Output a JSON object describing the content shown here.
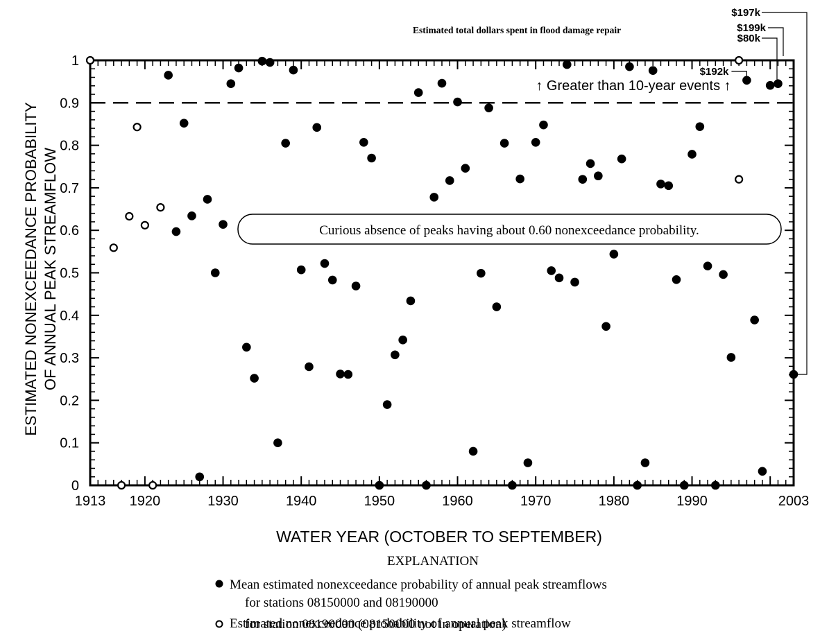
{
  "chart_data": {
    "type": "scatter",
    "xlabel": "WATER YEAR (OCTOBER TO SEPTEMBER)",
    "ylabel_line1": "ESTIMATED NONEXCEEDANCE PROBABILITY",
    "ylabel_line2": "OF ANNUAL PEAK STREAMFLOW",
    "xlim": [
      1913,
      2003
    ],
    "ylim": [
      0,
      1
    ],
    "x_ticks": [
      1913,
      1920,
      1930,
      1940,
      1950,
      1960,
      1970,
      1980,
      1990,
      2003
    ],
    "y_ticks": [
      0,
      0.1,
      0.2,
      0.3,
      0.4,
      0.5,
      0.6,
      0.7,
      0.8,
      0.9,
      1
    ],
    "y_tick_labels": [
      "0",
      "0.1",
      "0.2",
      "0.3",
      "0.4",
      "0.5",
      "0.6",
      "0.7",
      "0.8",
      "0.9",
      "1"
    ],
    "threshold_line": {
      "y": 0.9,
      "label": "↑ Greater than 10-year events ↑"
    },
    "annotation": "Curious absence of peaks having about 0.60 nonexceedance probability.",
    "damage_title": "Estimated total dollars spent in flood damage repair",
    "damage_labels": [
      {
        "year": 1997,
        "text": "$192k"
      },
      {
        "year": 2003,
        "text": "$197k"
      },
      {
        "year": 2002,
        "text": "$199k"
      },
      {
        "year": 2001,
        "text": "$80k"
      }
    ],
    "series": [
      {
        "name": "Mean estimated nonexceedance probability of annual peak streamflows",
        "marker": "filled",
        "points": [
          [
            1923,
            0.965
          ],
          [
            1924,
            0.597
          ],
          [
            1925,
            0.852
          ],
          [
            1926,
            0.634
          ],
          [
            1927,
            0.02
          ],
          [
            1928,
            0.673
          ],
          [
            1929,
            0.5
          ],
          [
            1930,
            0.614
          ],
          [
            1931,
            0.945
          ],
          [
            1932,
            0.982
          ],
          [
            1933,
            0.325
          ],
          [
            1934,
            0.252
          ],
          [
            1935,
            0.998
          ],
          [
            1936,
            0.995
          ],
          [
            1937,
            0.1
          ],
          [
            1938,
            0.805
          ],
          [
            1939,
            0.977
          ],
          [
            1940,
            0.507
          ],
          [
            1941,
            0.279
          ],
          [
            1942,
            0.842
          ],
          [
            1943,
            0.522
          ],
          [
            1944,
            0.483
          ],
          [
            1945,
            0.262
          ],
          [
            1946,
            0.261
          ],
          [
            1947,
            0.469
          ],
          [
            1948,
            0.807
          ],
          [
            1949,
            0.77
          ],
          [
            1950,
            0.0
          ],
          [
            1951,
            0.19
          ],
          [
            1952,
            0.307
          ],
          [
            1953,
            0.342
          ],
          [
            1954,
            0.434
          ],
          [
            1955,
            0.924
          ],
          [
            1956,
            0.0
          ],
          [
            1957,
            0.678
          ],
          [
            1958,
            0.946
          ],
          [
            1959,
            0.717
          ],
          [
            1960,
            0.902
          ],
          [
            1961,
            0.746
          ],
          [
            1962,
            0.08
          ],
          [
            1963,
            0.499
          ],
          [
            1964,
            0.888
          ],
          [
            1965,
            0.42
          ],
          [
            1966,
            0.805
          ],
          [
            1967,
            0.0
          ],
          [
            1968,
            0.721
          ],
          [
            1969,
            0.053
          ],
          [
            1970,
            0.807
          ],
          [
            1971,
            0.848
          ],
          [
            1972,
            0.505
          ],
          [
            1973,
            0.488
          ],
          [
            1974,
            0.99
          ],
          [
            1975,
            0.478
          ],
          [
            1976,
            0.72
          ],
          [
            1977,
            0.757
          ],
          [
            1978,
            0.728
          ],
          [
            1979,
            0.374
          ],
          [
            1980,
            0.544
          ],
          [
            1981,
            0.768
          ],
          [
            1982,
            0.985
          ],
          [
            1983,
            0.0
          ],
          [
            1984,
            0.053
          ],
          [
            1985,
            0.976
          ],
          [
            1986,
            0.709
          ],
          [
            1987,
            0.705
          ],
          [
            1988,
            0.484
          ],
          [
            1989,
            0.0
          ],
          [
            1990,
            0.779
          ],
          [
            1991,
            0.844
          ],
          [
            1992,
            0.516
          ],
          [
            1993,
            0.0
          ],
          [
            1994,
            0.496
          ],
          [
            1995,
            0.301
          ],
          [
            1997,
            0.953
          ],
          [
            1998,
            0.389
          ],
          [
            1999,
            0.033
          ],
          [
            2000,
            0.941
          ],
          [
            2001,
            0.945
          ],
          [
            2003,
            0.261
          ]
        ]
      },
      {
        "name": "Estimated nonexceedance probability of annual peak streamflow",
        "marker": "open",
        "points": [
          [
            1913,
            1.0
          ],
          [
            1916,
            0.559
          ],
          [
            1917,
            0.0
          ],
          [
            1918,
            0.633
          ],
          [
            1919,
            0.843
          ],
          [
            1920,
            0.612
          ],
          [
            1921,
            0.0
          ],
          [
            1922,
            0.654
          ],
          [
            1996,
            1.0
          ],
          [
            1996,
            0.72
          ]
        ]
      }
    ]
  },
  "legend": {
    "title": "EXPLANATION",
    "items": [
      {
        "marker": "filled",
        "line1": "Mean estimated nonexceedance probability of annual peak streamflows",
        "line2": "for stations 08150000 and 08190000"
      },
      {
        "marker": "open",
        "line1": "Estimated nonexceedance probability of annual peak streamflow",
        "line2": "for station 08190000 (08150000 not in operation)"
      }
    ]
  }
}
